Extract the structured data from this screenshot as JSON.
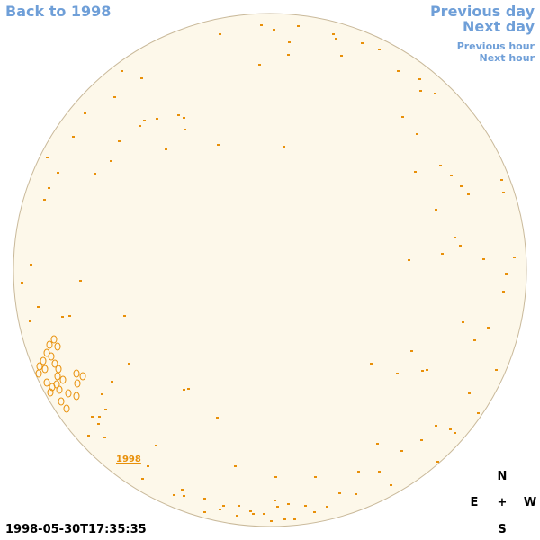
{
  "nav": {
    "back_label": "Back to 1998",
    "prev_day_label": "Previous day",
    "next_day_label": "Next day",
    "prev_hour_label": "Previous hour",
    "next_hour_label": "Next hour"
  },
  "timestamp": "1998-05-30T17:35:35",
  "year_marker": "1998",
  "compass": {
    "north": "N",
    "east": "E",
    "west": "W",
    "south": "S",
    "center": "+"
  },
  "colors": {
    "link": "#6f9fd8",
    "disk_fill": "#fdf8ea",
    "disk_stroke": "#c9b99a",
    "feature": "#e8900a"
  }
}
